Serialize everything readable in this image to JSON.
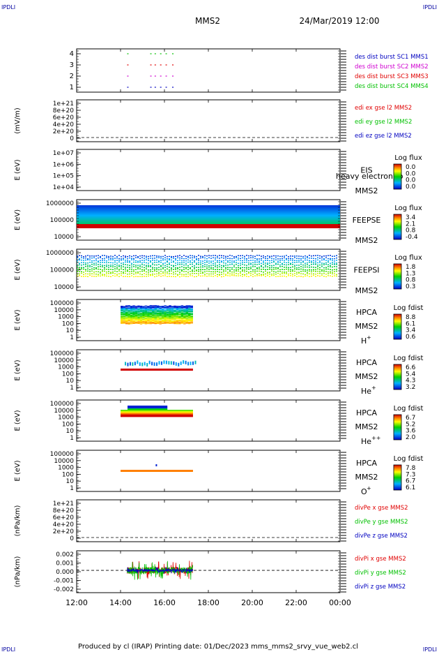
{
  "header": {
    "corner_left": "IPDLI",
    "corner_right": "IPDLI",
    "spacecraft": "MMS2",
    "datetime": "24/Mar/2019 12:00"
  },
  "footer": {
    "text": "Produced by cl (IRAP)   Printing date: 01/Dec/2023   mms_mms2_srvy_vue_web2.cl",
    "corner_left": "IPDLI",
    "corner_right": "IPDLI"
  },
  "colors": {
    "red": "#e00000",
    "green": "#00c000",
    "blue": "#0000c0",
    "magenta": "#d000d0"
  },
  "x_axis": {
    "range_hours": [
      12,
      24
    ],
    "tick_labels": [
      "12:00",
      "14:00",
      "16:00",
      "18:00",
      "20:00",
      "22:00",
      "00:00"
    ]
  },
  "chart_data": [
    {
      "type": "scatter",
      "panel": "burst",
      "y_ticks": [
        "4",
        "3",
        "2",
        "1"
      ],
      "legend": [
        {
          "label": "des dist burst SC1 MMS1",
          "color": "#0000c0"
        },
        {
          "label": "des dist burst SC2 MMS2",
          "color": "#d000d0"
        },
        {
          "label": "des dist burst SC3 MMS3",
          "color": "#e00000"
        },
        {
          "label": "des dist burst SC4 MMS4",
          "color": "#00c000"
        }
      ],
      "segments_hours": [
        14.3,
        15.35,
        15.55,
        15.8,
        16.05,
        16.35
      ]
    },
    {
      "type": "line",
      "panel": "edi",
      "ylabel": "(mV/m)",
      "y_ticks": [
        "1e+21",
        "8e+20",
        "6e+20",
        "4e+20",
        "2e+20",
        "0"
      ],
      "legend": [
        {
          "label": "edi ex gse l2 MMS2",
          "color": "#e00000"
        },
        {
          "label": "edi ey gse l2 MMS2",
          "color": "#00c000"
        },
        {
          "label": "edi ez gse l2 MMS2",
          "color": "#0000c0"
        }
      ]
    },
    {
      "type": "heatmap",
      "panel": "eis",
      "ylabel": "E (eV)",
      "y_ticks": [
        "1e+07",
        "1e+06",
        "1e+05",
        "1e+04"
      ],
      "instrument": "EIS",
      "spacecraft": "MMS2",
      "overlay_text": "heavy electron to",
      "colorbar": {
        "title": "Log flux",
        "ticks": [
          "0.0",
          "0.0",
          "0.0",
          "0.0"
        ]
      }
    },
    {
      "type": "heatmap",
      "panel": "feepse",
      "ylabel": "E (eV)",
      "y_ticks": [
        "1000000",
        "100000",
        "10000"
      ],
      "instrument": "FEEPSE",
      "spacecraft": "MMS2",
      "colorbar": {
        "title": "Log flux",
        "ticks": [
          "3.4",
          "2.1",
          "0.8",
          "-0.4"
        ]
      }
    },
    {
      "type": "heatmap",
      "panel": "feepsi",
      "ylabel": "E (eV)",
      "y_ticks": [
        "1000000",
        "100000",
        "10000"
      ],
      "instrument": "FEEPSI",
      "spacecraft": "MMS2",
      "colorbar": {
        "title": "Log flux",
        "ticks": [
          "1.8",
          "1.3",
          "0.8",
          "0.3"
        ]
      }
    },
    {
      "type": "heatmap",
      "panel": "hpca_h",
      "ylabel": "E (eV)",
      "y_ticks": [
        "100000",
        "10000",
        "1000",
        "100",
        "10",
        "1"
      ],
      "instrument": "HPCA",
      "spacecraft": "MMS2",
      "species": "H",
      "species_sup": "+",
      "time_range_hours": [
        14.0,
        17.3
      ],
      "colorbar": {
        "title": "Log fdist",
        "ticks": [
          "8.8",
          "6.1",
          "3.4",
          "0.6"
        ]
      }
    },
    {
      "type": "heatmap",
      "panel": "hpca_he",
      "ylabel": "E (eV)",
      "y_ticks": [
        "100000",
        "10000",
        "1000",
        "100",
        "10",
        "1"
      ],
      "instrument": "HPCA",
      "spacecraft": "MMS2",
      "species": "He",
      "species_sup": "+",
      "time_range_hours": [
        14.0,
        17.3
      ],
      "colorbar": {
        "title": "Log fdist",
        "ticks": [
          "6.6",
          "5.4",
          "4.3",
          "3.2"
        ]
      }
    },
    {
      "type": "heatmap",
      "panel": "hpca_he2",
      "ylabel": "E (eV)",
      "y_ticks": [
        "100000",
        "10000",
        "1000",
        "100",
        "10",
        "1"
      ],
      "instrument": "HPCA",
      "spacecraft": "MMS2",
      "species": "He",
      "species_sup": "++",
      "time_range_hours": [
        14.0,
        17.3
      ],
      "colorbar": {
        "title": "Log fdist",
        "ticks": [
          "6.7",
          "5.2",
          "3.6",
          "2.0"
        ]
      }
    },
    {
      "type": "heatmap",
      "panel": "hpca_o",
      "ylabel": "E (eV)",
      "y_ticks": [
        "100000",
        "10000",
        "1000",
        "100",
        "10",
        "1"
      ],
      "instrument": "HPCA",
      "spacecraft": "MMS2",
      "species": "O",
      "species_sup": "+",
      "time_range_hours": [
        14.0,
        17.3
      ],
      "colorbar": {
        "title": "Log fdist",
        "ticks": [
          "7.8",
          "7.3",
          "6.7",
          "6.1"
        ]
      }
    },
    {
      "type": "line",
      "panel": "divpe",
      "ylabel": "(nPa/km)",
      "y_ticks": [
        "1e+21",
        "8e+20",
        "6e+20",
        "4e+20",
        "2e+20",
        "0"
      ],
      "legend": [
        {
          "label": "divPe x gse MMS2",
          "color": "#e00000"
        },
        {
          "label": "divPe y gse MMS2",
          "color": "#00c000"
        },
        {
          "label": "divPe z gse MMS2",
          "color": "#0000c0"
        }
      ]
    },
    {
      "type": "line",
      "panel": "divpi",
      "ylabel": "(nPa/km)",
      "y_ticks": [
        "0.002",
        "0.001",
        "0.000",
        "-0.001",
        "-0.002"
      ],
      "ylim": [
        -0.0025,
        0.0022
      ],
      "time_range_hours": [
        14.3,
        17.3
      ],
      "legend": [
        {
          "label": "divPi x gse MMS2",
          "color": "#e00000"
        },
        {
          "label": "divPi y gse MMS2",
          "color": "#00c000"
        },
        {
          "label": "divPi z gse MMS2",
          "color": "#0000c0"
        }
      ]
    }
  ]
}
